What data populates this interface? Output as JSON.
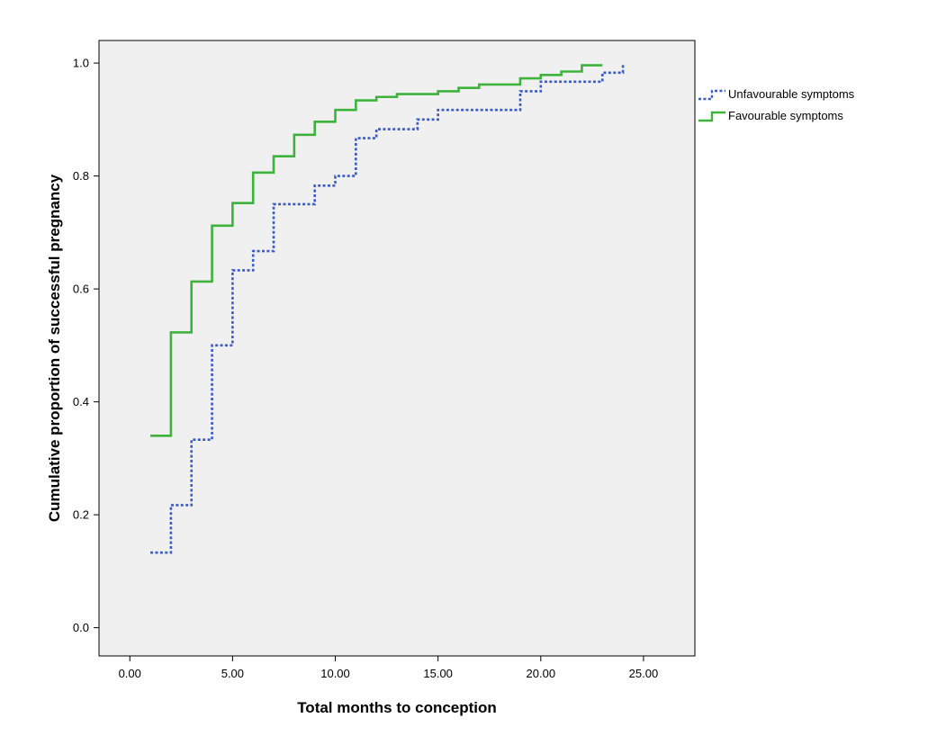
{
  "chart_data": {
    "type": "line",
    "title": "",
    "xlabel": "Total months to conception",
    "ylabel": "Cumulative proportion of successful pregnancy",
    "xlim": [
      -1.5,
      27.5
    ],
    "ylim": [
      -0.05,
      1.04
    ],
    "x_ticks": [
      0,
      5,
      10,
      15,
      20,
      25
    ],
    "x_tick_labels": [
      "0.00",
      "5.00",
      "10.00",
      "15.00",
      "20.00",
      "25.00"
    ],
    "y_ticks": [
      0,
      0.2,
      0.4,
      0.6,
      0.8,
      1.0
    ],
    "y_tick_labels": [
      "0.0",
      "0.2",
      "0.4",
      "0.6",
      "0.8",
      "1.0"
    ],
    "grid": false,
    "legend_position": "right-top, outside plot",
    "plot_background": "#f0f0f0",
    "series": [
      {
        "name": "Unfavourable symptoms",
        "color": "#3b5bc8",
        "style": "dotted",
        "points": [
          [
            1,
            0.133
          ],
          [
            2,
            0.133
          ],
          [
            2,
            0.217
          ],
          [
            3,
            0.217
          ],
          [
            3,
            0.333
          ],
          [
            4,
            0.333
          ],
          [
            4,
            0.5
          ],
          [
            5,
            0.5
          ],
          [
            5,
            0.633
          ],
          [
            6,
            0.633
          ],
          [
            6,
            0.667
          ],
          [
            7,
            0.667
          ],
          [
            7,
            0.75
          ],
          [
            9,
            0.75
          ],
          [
            9,
            0.783
          ],
          [
            10,
            0.783
          ],
          [
            10,
            0.8
          ],
          [
            11,
            0.8
          ],
          [
            11,
            0.867
          ],
          [
            12,
            0.867
          ],
          [
            12,
            0.883
          ],
          [
            14,
            0.883
          ],
          [
            14,
            0.9
          ],
          [
            15,
            0.9
          ],
          [
            15,
            0.917
          ],
          [
            19,
            0.917
          ],
          [
            19,
            0.95
          ],
          [
            20,
            0.95
          ],
          [
            20,
            0.967
          ],
          [
            23,
            0.967
          ],
          [
            23,
            0.983
          ],
          [
            24,
            0.983
          ],
          [
            24,
            1.0
          ]
        ]
      },
      {
        "name": "Favourable symptoms",
        "color": "#3cb43c",
        "style": "solid",
        "points": [
          [
            1,
            0.34
          ],
          [
            2,
            0.34
          ],
          [
            2,
            0.523
          ],
          [
            3,
            0.523
          ],
          [
            3,
            0.613
          ],
          [
            4,
            0.613
          ],
          [
            4,
            0.712
          ],
          [
            5,
            0.712
          ],
          [
            5,
            0.752
          ],
          [
            6,
            0.752
          ],
          [
            6,
            0.806
          ],
          [
            7,
            0.806
          ],
          [
            7,
            0.835
          ],
          [
            8,
            0.835
          ],
          [
            8,
            0.873
          ],
          [
            9,
            0.873
          ],
          [
            9,
            0.896
          ],
          [
            10,
            0.896
          ],
          [
            10,
            0.917
          ],
          [
            11,
            0.917
          ],
          [
            11,
            0.934
          ],
          [
            12,
            0.934
          ],
          [
            12,
            0.94
          ],
          [
            13,
            0.94
          ],
          [
            13,
            0.945
          ],
          [
            15,
            0.945
          ],
          [
            15,
            0.95
          ],
          [
            16,
            0.95
          ],
          [
            16,
            0.956
          ],
          [
            17,
            0.956
          ],
          [
            17,
            0.962
          ],
          [
            19,
            0.962
          ],
          [
            19,
            0.973
          ],
          [
            20,
            0.973
          ],
          [
            20,
            0.979
          ],
          [
            21,
            0.979
          ],
          [
            21,
            0.985
          ],
          [
            22,
            0.985
          ],
          [
            22,
            0.996
          ],
          [
            23,
            0.996
          ]
        ]
      }
    ]
  }
}
